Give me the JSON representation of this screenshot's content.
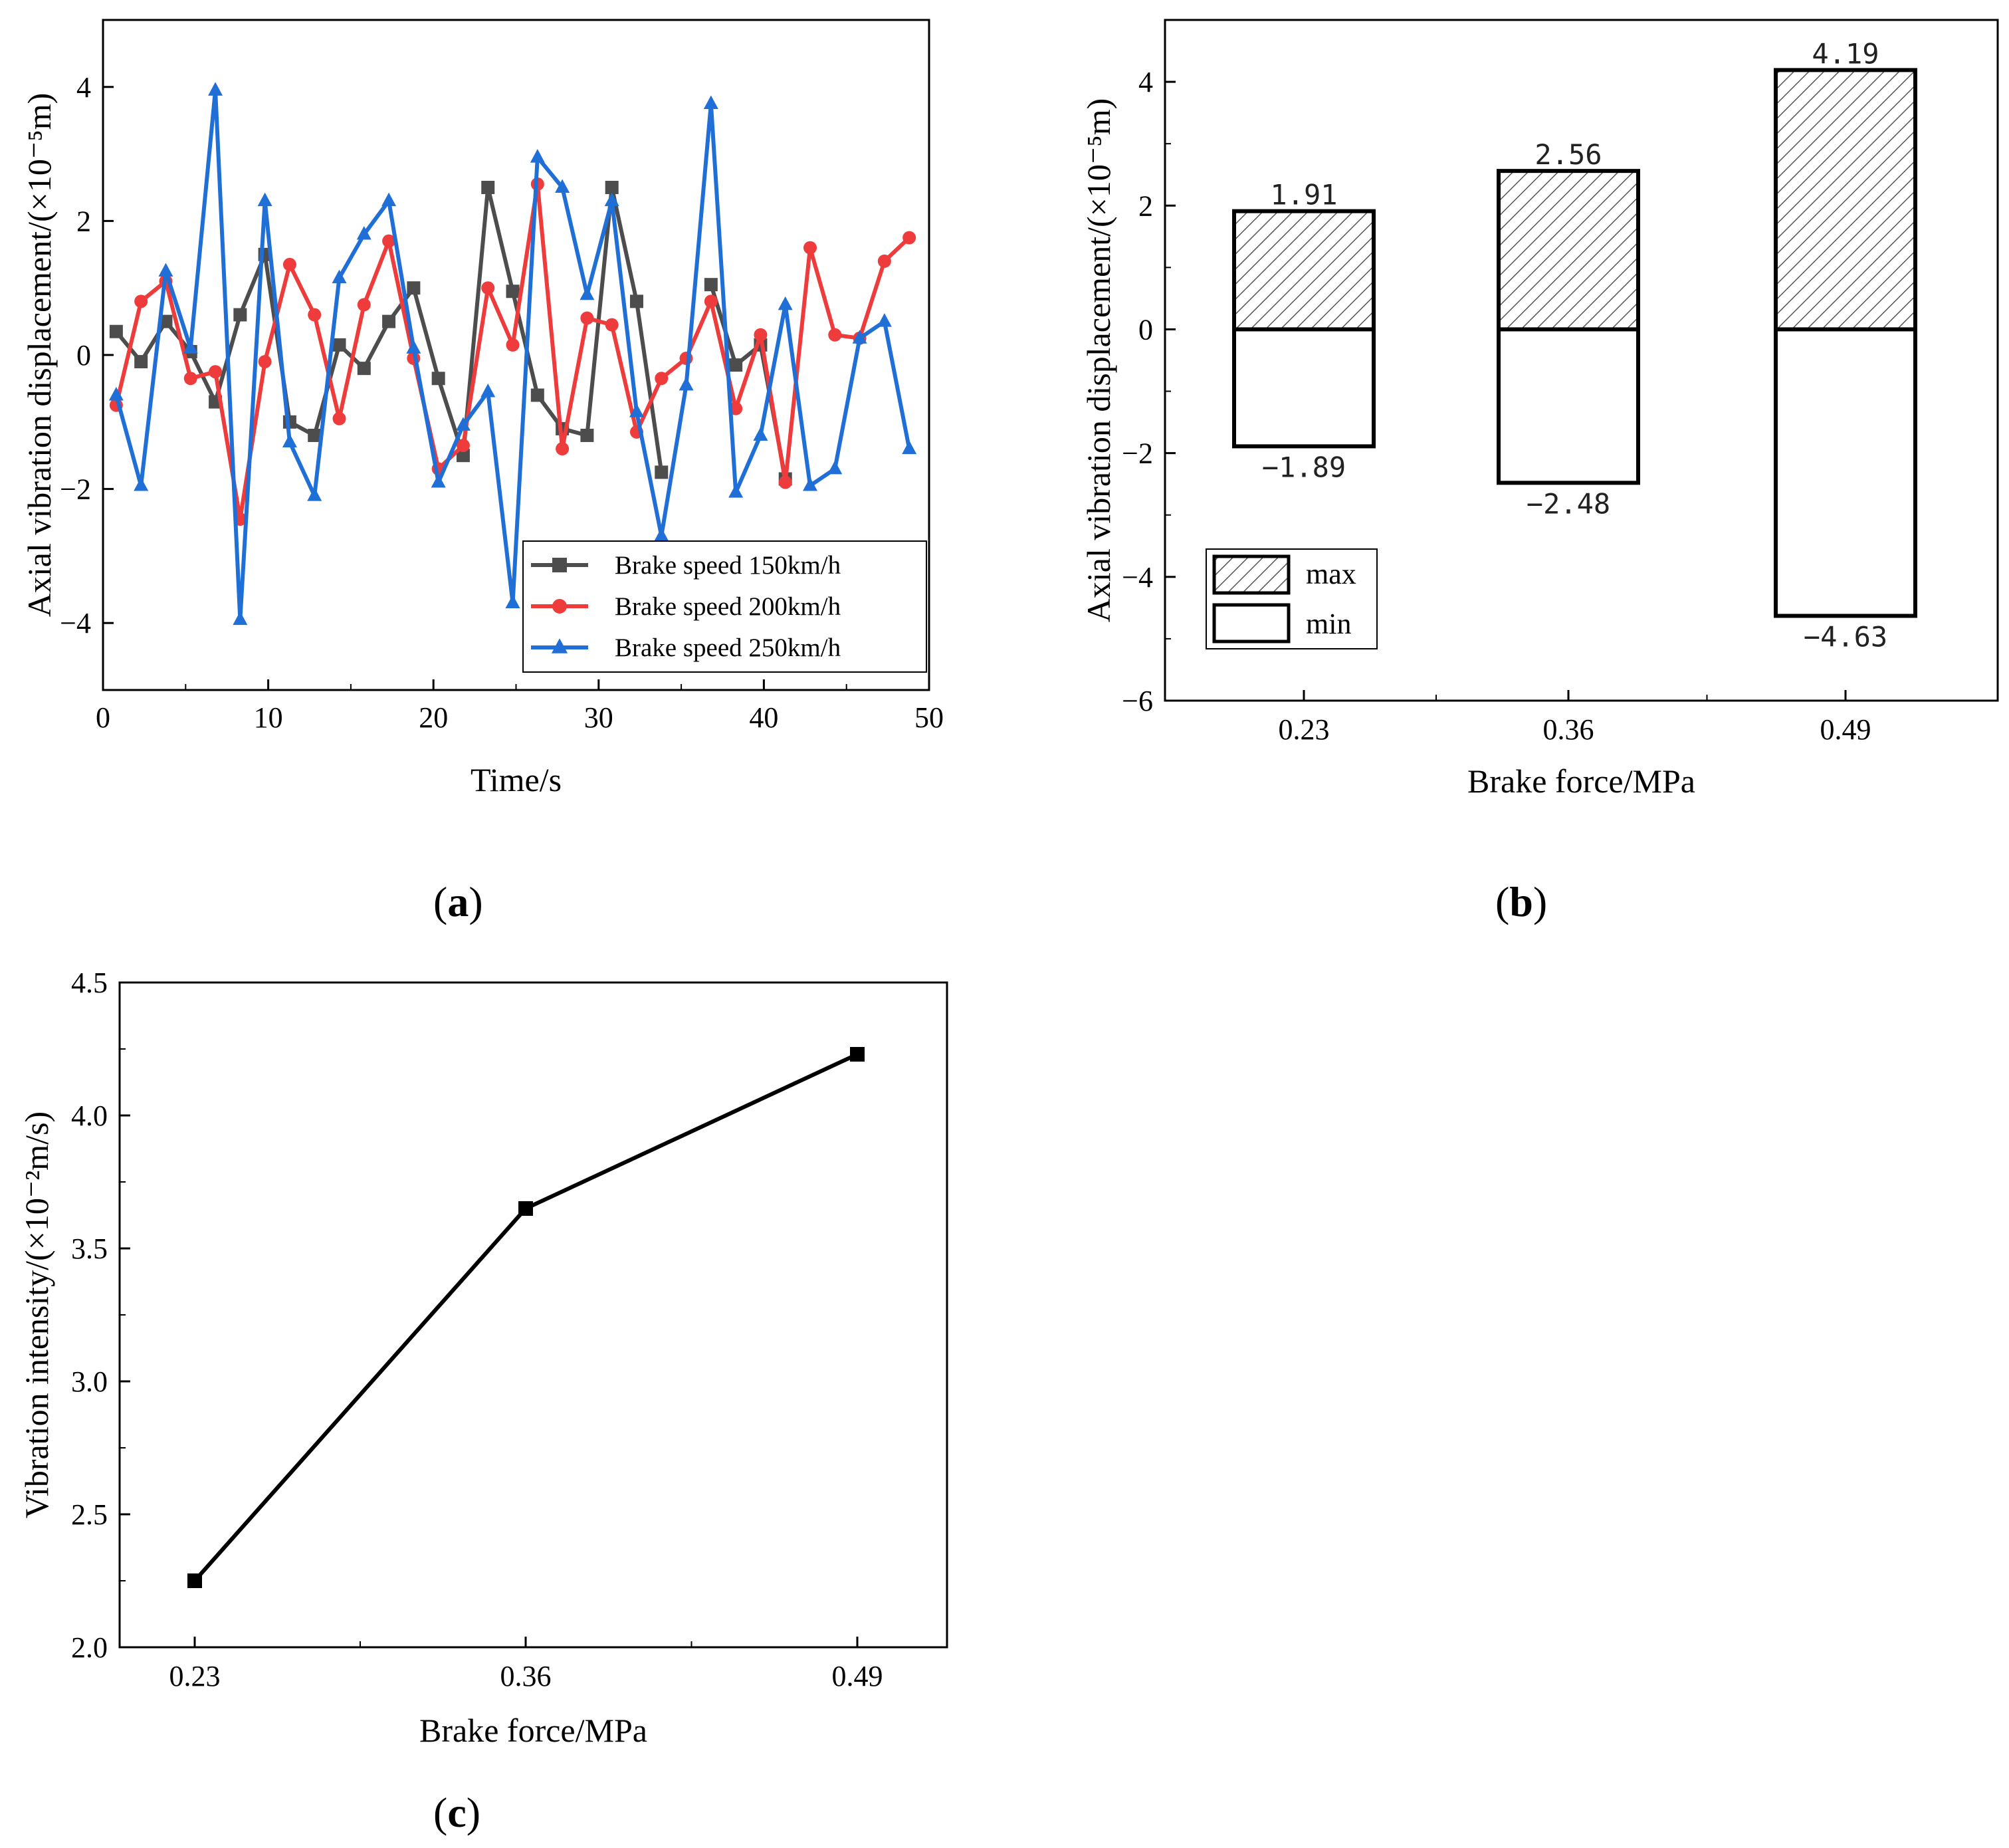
{
  "panels": {
    "a": {
      "label": "a"
    },
    "b": {
      "label": "b"
    },
    "c": {
      "label": "c"
    }
  },
  "chart_data": [
    {
      "id": "a",
      "type": "line",
      "xlabel": "Time/s",
      "ylabel": "Axial vibration displacement/(×10⁻⁵m)",
      "xlim": [
        0,
        50
      ],
      "ylim": [
        -5,
        5
      ],
      "xticks": [
        0,
        10,
        20,
        30,
        40,
        50
      ],
      "yticks": [
        -4,
        -2,
        0,
        2,
        4
      ],
      "legend_position": "bottom-right",
      "x": [
        0.8,
        2.3,
        3.8,
        5.3,
        6.8,
        8.3,
        9.8,
        11.3,
        12.8,
        14.3,
        15.8,
        17.3,
        18.8,
        20.3,
        21.8,
        23.3,
        24.8,
        26.3,
        27.8,
        29.3,
        30.8,
        32.3,
        33.8,
        35.3,
        36.8,
        38.3,
        39.8,
        41.3,
        42.8,
        44.3,
        45.8,
        47.3,
        48.8
      ],
      "series": [
        {
          "name": "Brake speed 150km/h",
          "color": "#4d4d4d",
          "marker": "square",
          "values": [
            0.35,
            -0.1,
            0.5,
            0.05,
            -0.7,
            0.6,
            1.5,
            -1.0,
            -1.2,
            0.15,
            -0.2,
            0.5,
            1.0,
            -0.35,
            -1.5,
            2.5,
            0.95,
            -0.6,
            -1.1,
            -1.2,
            2.5,
            0.8,
            -1.75,
            null,
            1.05,
            -0.15,
            0.15,
            -1.85,
            null,
            null,
            null,
            null,
            null
          ]
        },
        {
          "name": "Brake speed 200km/h",
          "color": "#ee3b3b",
          "marker": "circle",
          "values": [
            -0.75,
            0.8,
            1.1,
            -0.35,
            -0.25,
            -2.45,
            -0.1,
            1.35,
            0.6,
            -0.95,
            0.75,
            1.7,
            -0.05,
            -1.7,
            -1.35,
            1.0,
            0.15,
            2.55,
            -1.4,
            0.55,
            0.45,
            -1.15,
            -0.35,
            -0.05,
            0.8,
            -0.8,
            0.3,
            -1.9,
            1.6,
            0.3,
            0.25,
            1.4,
            1.75
          ]
        },
        {
          "name": "Brake speed 250km/h",
          "color": "#1f6fd6",
          "marker": "triangle",
          "values": [
            -0.6,
            -1.95,
            1.25,
            0.1,
            3.95,
            -3.95,
            2.3,
            -1.3,
            -2.1,
            1.15,
            1.8,
            2.3,
            0.1,
            -1.9,
            -1.05,
            -0.55,
            -3.7,
            2.95,
            2.5,
            0.9,
            2.3,
            -0.85,
            -2.7,
            -0.45,
            3.75,
            -2.05,
            -1.2,
            0.75,
            -1.95,
            -1.7,
            0.25,
            0.5,
            -1.4
          ]
        }
      ]
    },
    {
      "id": "b",
      "type": "bar",
      "xlabel": "Brake force/MPa",
      "ylabel": "Axial vibration displacement/(×10⁻⁵m)",
      "categories": [
        "0.23",
        "0.36",
        "0.49"
      ],
      "ylim": [
        -6,
        5
      ],
      "yticks": [
        -6,
        -4,
        -2,
        0,
        2,
        4
      ],
      "legend_position": "bottom-left",
      "series": [
        {
          "name": "max",
          "pattern": "hatched",
          "values": [
            1.91,
            2.56,
            4.19
          ],
          "labels": [
            "1.91",
            "2.56",
            "4.19"
          ]
        },
        {
          "name": "min",
          "pattern": "white",
          "values": [
            -1.89,
            -2.48,
            -4.63
          ],
          "labels": [
            "-1.89",
            "-2.48",
            "-4.63"
          ]
        }
      ]
    },
    {
      "id": "c",
      "type": "line",
      "xlabel": "Brake force/MPa",
      "ylabel": "Vibration intensity/(×10⁻²m/s)",
      "categories": [
        "0.23",
        "0.36",
        "0.49"
      ],
      "ylim": [
        2.0,
        4.5
      ],
      "yticks": [
        "2.0",
        "2.5",
        "3.0",
        "3.5",
        "4.0",
        "4.5"
      ],
      "series": [
        {
          "color": "#000000",
          "marker": "square",
          "values": [
            2.25,
            3.65,
            4.23
          ]
        }
      ]
    }
  ]
}
